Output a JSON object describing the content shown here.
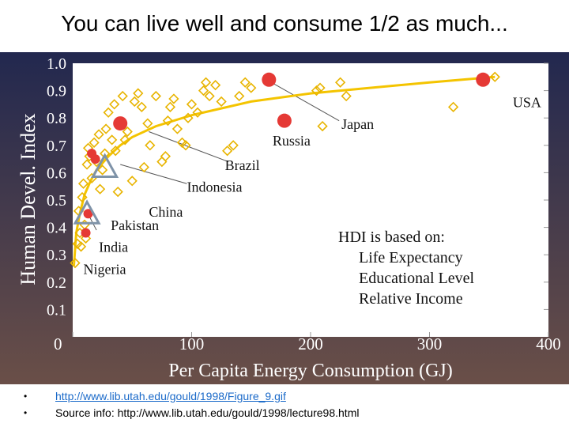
{
  "slide": {
    "title": "You can live well and consume 1/2 as much...",
    "footer": [
      {
        "bullet": "•",
        "text": "http://www.lib.utah.edu/gould/1998/Figure_9.gif",
        "is_link": true
      },
      {
        "bullet": "•",
        "text": "Source info: http://www.lib.utah.edu/gould/1998/lecture98.html",
        "is_link": false
      }
    ]
  },
  "colors": {
    "background_top": "#22284f",
    "background_bottom": "#6a4f48",
    "plot_bg": "#ffffff",
    "points": "#e8b400",
    "curve": "#f4c400",
    "highlight": "#e53935",
    "triangle": "#7f93a8",
    "text": "#ffffff"
  },
  "chart_data": {
    "type": "scatter",
    "xlabel": "Per Capita Energy Consumption (GJ)",
    "ylabel": "Human Devel. Index",
    "xlim": [
      0,
      400
    ],
    "ylim": [
      0,
      1.0
    ],
    "x_ticks": [
      {
        "value": 0,
        "label": "0"
      },
      {
        "value": 100,
        "label": "100"
      },
      {
        "value": 200,
        "label": "200"
      },
      {
        "value": 300,
        "label": "300"
      },
      {
        "value": 400,
        "label": "400"
      }
    ],
    "y_ticks": [
      {
        "value": 0.1,
        "label": "0.1"
      },
      {
        "value": 0.2,
        "label": "0.2"
      },
      {
        "value": 0.3,
        "label": "0.3"
      },
      {
        "value": 0.4,
        "label": "0.4"
      },
      {
        "value": 0.5,
        "label": "0.5"
      },
      {
        "value": 0.6,
        "label": "0.6"
      },
      {
        "value": 0.7,
        "label": "0.7"
      },
      {
        "value": 0.8,
        "label": "0.8"
      },
      {
        "value": 0.9,
        "label": "0.9"
      },
      {
        "value": 1.0,
        "label": "1.0"
      }
    ],
    "countries": [
      [
        2,
        0.27
      ],
      [
        4,
        0.34
      ],
      [
        5,
        0.46
      ],
      [
        6,
        0.38
      ],
      [
        7,
        0.33
      ],
      [
        8,
        0.51
      ],
      [
        9,
        0.56
      ],
      [
        10,
        0.41
      ],
      [
        11,
        0.36
      ],
      [
        12,
        0.63
      ],
      [
        13,
        0.69
      ],
      [
        14,
        0.66
      ],
      [
        16,
        0.58
      ],
      [
        18,
        0.71
      ],
      [
        20,
        0.64
      ],
      [
        22,
        0.74
      ],
      [
        23,
        0.54
      ],
      [
        25,
        0.61
      ],
      [
        27,
        0.67
      ],
      [
        28,
        0.76
      ],
      [
        30,
        0.82
      ],
      [
        33,
        0.72
      ],
      [
        35,
        0.85
      ],
      [
        36,
        0.68
      ],
      [
        38,
        0.53
      ],
      [
        40,
        0.78
      ],
      [
        42,
        0.88
      ],
      [
        44,
        0.72
      ],
      [
        46,
        0.75
      ],
      [
        50,
        0.57
      ],
      [
        52,
        0.86
      ],
      [
        55,
        0.89
      ],
      [
        58,
        0.84
      ],
      [
        60,
        0.62
      ],
      [
        63,
        0.78
      ],
      [
        65,
        0.7
      ],
      [
        70,
        0.88
      ],
      [
        75,
        0.64
      ],
      [
        78,
        0.66
      ],
      [
        80,
        0.79
      ],
      [
        82,
        0.84
      ],
      [
        85,
        0.87
      ],
      [
        88,
        0.76
      ],
      [
        92,
        0.71
      ],
      [
        95,
        0.7
      ],
      [
        97,
        0.8
      ],
      [
        100,
        0.85
      ],
      [
        105,
        0.82
      ],
      [
        110,
        0.9
      ],
      [
        112,
        0.93
      ],
      [
        115,
        0.88
      ],
      [
        120,
        0.92
      ],
      [
        125,
        0.86
      ],
      [
        130,
        0.68
      ],
      [
        135,
        0.7
      ],
      [
        140,
        0.88
      ],
      [
        145,
        0.93
      ],
      [
        150,
        0.91
      ],
      [
        205,
        0.9
      ],
      [
        208,
        0.91
      ],
      [
        210,
        0.77
      ],
      [
        225,
        0.93
      ],
      [
        230,
        0.88
      ],
      [
        320,
        0.84
      ],
      [
        355,
        0.95
      ]
    ],
    "highlighted": [
      {
        "label": "USA",
        "x": 345,
        "y": 0.94
      },
      {
        "label": "Japan",
        "x": 165,
        "y": 0.94
      },
      {
        "label": "Russia",
        "x": 178,
        "y": 0.79
      },
      {
        "label": "China",
        "x": 40,
        "y": 0.78
      }
    ],
    "highlighted_minor": [
      [
        11,
        0.38
      ],
      [
        13,
        0.45
      ],
      [
        16,
        0.67
      ],
      [
        19,
        0.65
      ]
    ],
    "triangles": [
      {
        "label": "Indonesia",
        "x": 27,
        "y": 0.62
      },
      {
        "label": "Pakistan",
        "x": 12,
        "y": 0.45
      }
    ],
    "curve": [
      [
        1,
        0.26
      ],
      [
        3,
        0.38
      ],
      [
        6,
        0.45
      ],
      [
        10,
        0.52
      ],
      [
        15,
        0.57
      ],
      [
        20,
        0.61
      ],
      [
        30,
        0.66
      ],
      [
        40,
        0.7
      ],
      [
        50,
        0.73
      ],
      [
        70,
        0.77
      ],
      [
        100,
        0.81
      ],
      [
        150,
        0.86
      ],
      [
        200,
        0.89
      ],
      [
        250,
        0.91
      ],
      [
        300,
        0.93
      ],
      [
        355,
        0.95
      ]
    ],
    "annotations": [
      {
        "label": "USA",
        "x": 370,
        "y": 0.84
      },
      {
        "label": "Japan",
        "x": 226,
        "y": 0.76
      },
      {
        "label": "Russia",
        "x": 168,
        "y": 0.7
      },
      {
        "label": "Brazil",
        "x": 128,
        "y": 0.61
      },
      {
        "label": "Indonesia",
        "x": 96,
        "y": 0.53
      },
      {
        "label": "China",
        "x": 64,
        "y": 0.44
      },
      {
        "label": "Pakistan",
        "x": 32,
        "y": 0.39
      },
      {
        "label": "India",
        "x": 22,
        "y": 0.31
      },
      {
        "label": "Nigeria",
        "x": 9,
        "y": 0.23
      }
    ],
    "leaders": [
      {
        "from": [
          224,
          0.79
        ],
        "to": [
          167,
          0.93
        ]
      },
      {
        "from": [
          131,
          0.64
        ],
        "to": [
          64,
          0.75
        ]
      },
      {
        "from": [
          96,
          0.56
        ],
        "to": [
          40,
          0.63
        ]
      },
      {
        "from": [
          20,
          0.39
        ],
        "to": [
          14,
          0.44
        ]
      }
    ],
    "info_box": [
      {
        "text": "HDI is based on:",
        "indent": false
      },
      {
        "text": "Life Expectancy",
        "indent": true
      },
      {
        "text": "Educational Level",
        "indent": true
      },
      {
        "text": "Relative Income",
        "indent": true
      }
    ]
  }
}
